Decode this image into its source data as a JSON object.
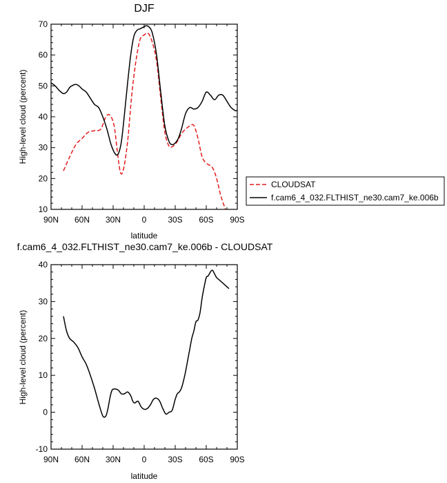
{
  "chart_data": [
    {
      "type": "line",
      "title": "DJF",
      "xlabel": "latitude",
      "ylabel": "High-level cloud (percent)",
      "xlim": [
        -90,
        90
      ],
      "ylim": [
        10,
        70
      ],
      "x_ticks": [
        -90,
        -60,
        -30,
        0,
        30,
        60,
        90
      ],
      "x_tick_labels": [
        "90N",
        "60N",
        "30N",
        "0",
        "30S",
        "60S",
        "90S"
      ],
      "y_ticks": [
        10,
        20,
        30,
        40,
        50,
        60,
        70
      ],
      "y_tick_labels": [
        "10",
        "20",
        "30",
        "40",
        "50",
        "60",
        "70"
      ],
      "legend_position": "right",
      "series": [
        {
          "name": "CLOUDSAT",
          "color": "#e41a1c",
          "dash": "dashed",
          "x": [
            -78,
            -72,
            -66,
            -60,
            -54,
            -48,
            -42,
            -37,
            -33,
            -29,
            -26,
            -23,
            -20,
            -16,
            -12,
            -8,
            -4,
            0,
            4,
            8,
            12,
            16,
            20,
            24,
            28,
            32,
            36,
            40,
            44,
            48,
            52,
            56,
            60,
            66,
            70,
            74,
            78,
            81
          ],
          "y": [
            22.5,
            27,
            31,
            33,
            35,
            35.5,
            36,
            40,
            40.5,
            37,
            29,
            22,
            23,
            32,
            47,
            58,
            65,
            66.5,
            67,
            64,
            58,
            46,
            35,
            30.5,
            30.5,
            32,
            34.5,
            36,
            37,
            37.2,
            33,
            27,
            25,
            23.5,
            20,
            14.5,
            10.5,
            8
          ]
        },
        {
          "name": "f.cam6_4_032.FLTHIST_ne30.cam7_ke.006b",
          "color": "#000000",
          "dash": "solid",
          "x": [
            -90,
            -86,
            -82,
            -78,
            -75,
            -72,
            -69,
            -66,
            -63,
            -60,
            -56,
            -52,
            -48,
            -44,
            -40,
            -36,
            -32,
            -28,
            -25,
            -22,
            -19,
            -16,
            -13,
            -10,
            -7,
            -4,
            -1,
            2,
            5,
            8,
            12,
            16,
            20,
            24,
            27,
            30,
            33,
            36,
            40,
            44,
            48,
            52,
            56,
            60,
            64,
            68,
            72,
            76,
            80,
            84,
            88,
            90
          ],
          "y": [
            51,
            50,
            48.5,
            47.5,
            48,
            49.5,
            50.2,
            50.5,
            50,
            49,
            48,
            46,
            44,
            43,
            40,
            36,
            31,
            28,
            28,
            32,
            41,
            51,
            60,
            66,
            68,
            68.5,
            69,
            69.5,
            69,
            67,
            60,
            48,
            37,
            32,
            31,
            31.5,
            33,
            36,
            41,
            43,
            42.5,
            43,
            45,
            48,
            47,
            45.5,
            47,
            47,
            45,
            43,
            42,
            42
          ]
        }
      ]
    },
    {
      "type": "line",
      "title": "f.cam6_4_032.FLTHIST_ne30.cam7_ke.006b - CLOUDSAT",
      "xlabel": "latitude",
      "ylabel": "High-level cloud (percent)",
      "xlim": [
        -90,
        90
      ],
      "ylim": [
        -10,
        40
      ],
      "x_ticks": [
        -90,
        -60,
        -30,
        0,
        30,
        60,
        90
      ],
      "x_tick_labels": [
        "90N",
        "60N",
        "30N",
        "0",
        "30S",
        "60S",
        "90S"
      ],
      "y_ticks": [
        -10,
        0,
        10,
        20,
        30,
        40
      ],
      "y_tick_labels": [
        "-10",
        "0",
        "10",
        "20",
        "30",
        "40"
      ],
      "series": [
        {
          "color": "#000000",
          "dash": "solid",
          "x": [
            -78,
            -75,
            -72,
            -68,
            -64,
            -60,
            -56,
            -52,
            -48,
            -44,
            -40,
            -37,
            -35,
            -33,
            -31,
            -28,
            -25,
            -22,
            -19,
            -16,
            -13,
            -11,
            -9,
            -6,
            -3,
            0,
            3,
            6,
            9,
            12,
            15,
            18,
            21,
            24,
            27,
            30,
            32,
            34,
            36,
            38,
            40,
            42,
            44,
            46,
            48,
            50,
            52,
            54,
            56,
            58,
            60,
            62,
            64,
            66,
            68,
            70,
            72,
            74,
            76,
            78,
            80,
            82
          ],
          "y": [
            26,
            22,
            20,
            19,
            17.5,
            15,
            13,
            10,
            6.5,
            2.5,
            -1,
            -1,
            1,
            4,
            6,
            6.3,
            6,
            5,
            5,
            5.5,
            4.5,
            3,
            2.5,
            3,
            1.5,
            0.8,
            1,
            2,
            3.5,
            3.8,
            3,
            1,
            -0.5,
            0,
            0.5,
            3.5,
            5,
            5.5,
            6.5,
            8.5,
            11,
            14,
            17,
            20,
            22,
            24.5,
            25,
            27,
            31,
            34,
            36.5,
            37,
            38,
            38.5,
            37.5,
            36.5,
            36,
            35.5,
            35,
            34.5,
            34,
            33.5
          ]
        }
      ]
    }
  ]
}
